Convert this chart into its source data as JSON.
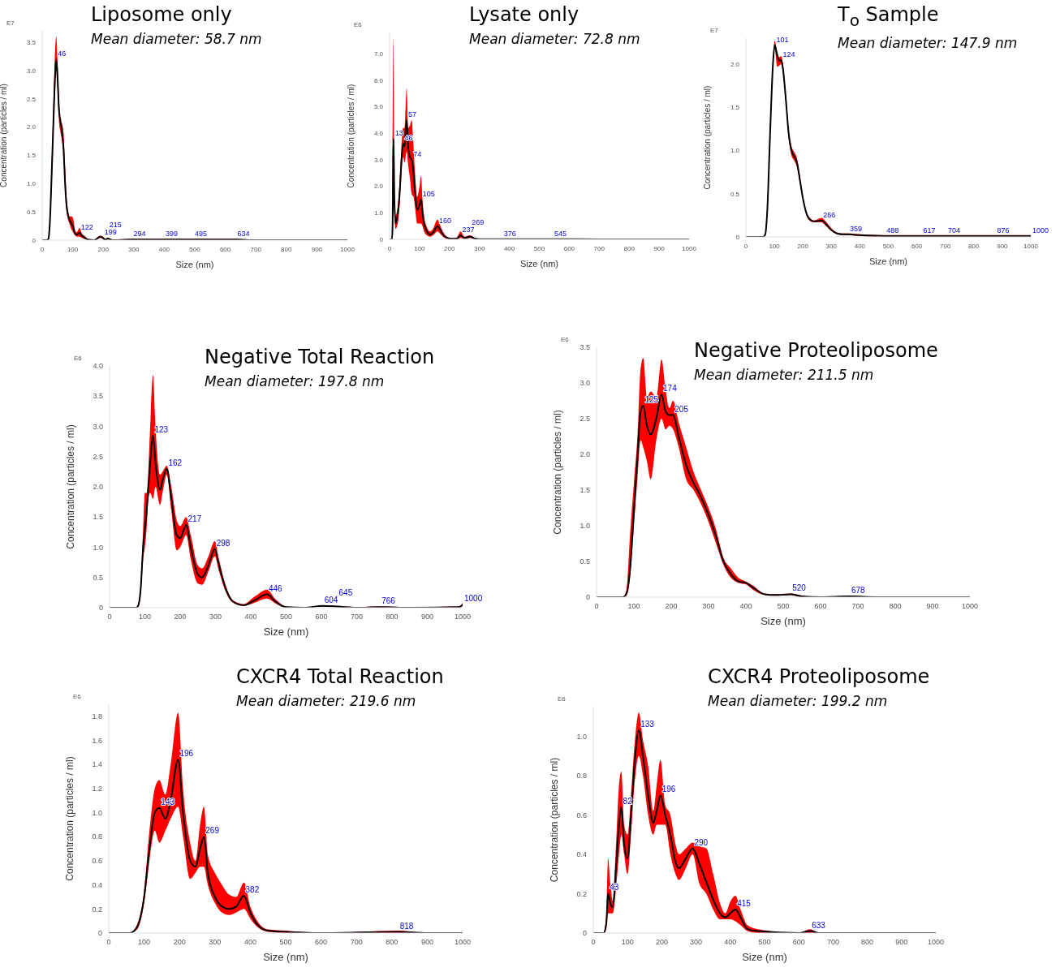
{
  "chart_data": [
    {
      "type": "line",
      "title": "Liposome only",
      "subtitle": "Mean diameter: 58.7 nm",
      "xlabel": "Size (nm)",
      "ylabel": "Concentration (particles / ml)",
      "xlim": [
        0,
        1000
      ],
      "xticks": [
        0,
        100,
        200,
        300,
        400,
        500,
        600,
        700,
        800,
        900,
        1000
      ],
      "ylim": [
        0,
        3.7
      ],
      "yticks": [
        0,
        0.5,
        {
          "value": 1,
          "label": "1.0"
        },
        1.5,
        {
          "value": 2,
          "label": "2.0"
        },
        2.5,
        {
          "value": 3,
          "label": "3.0"
        },
        3.5
      ],
      "series": [
        {
          "color": "#000000",
          "x": [
            0,
            15,
            20,
            25,
            30,
            35,
            40,
            46,
            50,
            55,
            60,
            65,
            70,
            75,
            80,
            90,
            95,
            100,
            110,
            115,
            122,
            130,
            140,
            150,
            170,
            190,
            199,
            207,
            215,
            230,
            294,
            399,
            495,
            634,
            700,
            1000
          ],
          "values": [
            0,
            0,
            0.02,
            0.3,
            1.0,
            1.8,
            2.6,
            3.2,
            2.9,
            2.3,
            2.1,
            1.9,
            1.6,
            1.0,
            0.6,
            0.35,
            0.3,
            0.25,
            0.1,
            0.1,
            0.13,
            0.08,
            0.04,
            0.01,
            0,
            0.06,
            0.04,
            0.01,
            0.03,
            0,
            0.01,
            0.01,
            0.01,
            0.01,
            0,
            0
          ],
          "lower": [
            0,
            0,
            0.01,
            0.2,
            0.8,
            1.6,
            2.3,
            3.0,
            2.7,
            2.1,
            1.9,
            1.75,
            1.5,
            0.9,
            0.5,
            0.28,
            0.2,
            0.15,
            0.07,
            0.06,
            0.06,
            0.04,
            0.02,
            0,
            0,
            0.04,
            0.02,
            0,
            0.01,
            0,
            0,
            0,
            0,
            0,
            0,
            0
          ],
          "upper": [
            0,
            0,
            0.04,
            0.4,
            1.2,
            2.1,
            3.0,
            3.6,
            3.2,
            2.5,
            2.1,
            2.05,
            1.9,
            1.3,
            0.75,
            0.42,
            0.42,
            0.4,
            0.14,
            0.15,
            0.22,
            0.12,
            0.07,
            0.02,
            0.01,
            0.08,
            0.06,
            0.02,
            0.04,
            0.01,
            0.02,
            0.02,
            0.02,
            0.02,
            0,
            0
          ]
        }
      ],
      "annotations": [
        "E7",
        {
          "text": "46",
          "x": 46,
          "y": 3.2
        },
        {
          "text": "122",
          "x": 122,
          "y": 0.13
        },
        {
          "text": "199",
          "x": 199,
          "y": 0.04
        },
        {
          "text": "215",
          "x": 215,
          "y": 0.03
        },
        {
          "text": "294",
          "x": 294,
          "y": 0.01
        },
        {
          "text": "399",
          "x": 399,
          "y": 0.01
        },
        {
          "text": "495",
          "x": 495,
          "y": 0.01
        },
        {
          "text": "634",
          "x": 634,
          "y": 0.01
        }
      ]
    },
    {
      "type": "line",
      "title": "Lysate only",
      "subtitle": "Mean diameter: 72.8 nm",
      "xlabel": "Size (nm)",
      "ylabel": "Concentration (particles / ml)",
      "xlim": [
        0,
        1000
      ],
      "xticks": [
        0,
        100,
        200,
        300,
        400,
        500,
        600,
        700,
        800,
        900,
        1000
      ],
      "ylim": [
        0,
        7.8
      ],
      "yticks": [
        0,
        {
          "value": 1,
          "label": "1.0"
        },
        {
          "value": 2,
          "label": "2.0"
        },
        {
          "value": 3,
          "label": "3.0"
        },
        {
          "value": 4,
          "label": "4.0"
        },
        {
          "value": 5,
          "label": "5.0"
        },
        {
          "value": 6,
          "label": "6.0"
        },
        {
          "value": 7,
          "label": "7.0"
        }
      ],
      "series": [
        {
          "color": "#000000",
          "x": [
            0,
            8,
            10,
            13,
            16,
            20,
            25,
            30,
            35,
            40,
            45,
            50,
            57,
            62,
            68,
            74,
            80,
            85,
            92,
            100,
            105,
            110,
            115,
            125,
            135,
            145,
            160,
            170,
            180,
            195,
            210,
            225,
            237,
            250,
            269,
            285,
            300,
            376,
            545,
            700,
            1000
          ],
          "values": [
            0,
            0,
            0.5,
            3.8,
            1.5,
            0.6,
            0.8,
            1.2,
            2.0,
            3.0,
            3.6,
            3.5,
            4.5,
            3.5,
            3.1,
            3.0,
            2.5,
            1.8,
            1.1,
            1.3,
            1.5,
            1.0,
            0.6,
            0.3,
            0.18,
            0.25,
            0.5,
            0.35,
            0.15,
            0.05,
            0.02,
            0.03,
            0.15,
            0.05,
            0.1,
            0.03,
            0.01,
            0.01,
            0.01,
            0,
            0
          ],
          "lower": [
            0,
            0,
            0.2,
            2.8,
            1.0,
            0.4,
            0.5,
            0.8,
            1.6,
            2.6,
            3.1,
            2.9,
            3.3,
            2.8,
            2.3,
            1.7,
            1.6,
            1.2,
            0.6,
            0.6,
            0.6,
            0.5,
            0.3,
            0.15,
            0.1,
            0.15,
            0.3,
            0.2,
            0.08,
            0.02,
            0,
            0,
            0.05,
            0.02,
            0.05,
            0.01,
            0,
            0,
            0,
            0,
            0
          ],
          "upper": [
            0,
            0,
            2.8,
            7.6,
            2.0,
            0.9,
            1.1,
            1.6,
            2.5,
            3.6,
            4.2,
            4.2,
            5.7,
            4.2,
            4.3,
            4.5,
            3.5,
            2.5,
            1.6,
            2.0,
            2.4,
            1.5,
            0.9,
            0.45,
            0.3,
            0.4,
            0.75,
            0.5,
            0.25,
            0.08,
            0.04,
            0.08,
            0.3,
            0.1,
            0.15,
            0.05,
            0.02,
            0.02,
            0.02,
            0,
            0
          ]
        }
      ],
      "annotations": [
        "E6",
        {
          "text": "13",
          "x": 13,
          "y": 3.8
        },
        {
          "text": "46",
          "x": 45,
          "y": 3.6
        },
        {
          "text": "57",
          "x": 57,
          "y": 4.5
        },
        {
          "text": "74",
          "x": 74,
          "y": 3.0
        },
        {
          "text": "105",
          "x": 105,
          "y": 1.5
        },
        {
          "text": "160",
          "x": 160,
          "y": 0.5
        },
        {
          "text": "237",
          "x": 237,
          "y": 0.15
        },
        {
          "text": "269",
          "x": 269,
          "y": 0.1
        },
        {
          "text": "376",
          "x": 376,
          "y": 0.01
        },
        {
          "text": "545",
          "x": 545,
          "y": 0.01
        }
      ]
    },
    {
      "type": "line",
      "title": "T$_{o}$ Sample",
      "subtitle": "Mean diameter: 147.9 nm",
      "xlabel": "Size (nm)",
      "ylabel": "Concentration (particles / ml)",
      "xlim": [
        0,
        1000
      ],
      "xticks": [
        0,
        100,
        200,
        300,
        400,
        500,
        600,
        700,
        800,
        900,
        1000
      ],
      "ylim": [
        0,
        2.3
      ],
      "yticks": [
        0,
        0.5,
        {
          "value": 1,
          "label": "1.0"
        },
        1.5,
        {
          "value": 2,
          "label": "2.0"
        }
      ],
      "series": [
        {
          "color": "#000000",
          "x": [
            0,
            60,
            68,
            75,
            85,
            95,
            101,
            110,
            117,
            124,
            130,
            140,
            150,
            160,
            170,
            180,
            190,
            200,
            210,
            220,
            240,
            266,
            280,
            300,
            320,
            340,
            359,
            400,
            488,
            617,
            704,
            876,
            1000
          ],
          "values": [
            0,
            0,
            0.03,
            0.3,
            1.2,
            2.0,
            2.22,
            2.1,
            2.04,
            2.05,
            1.95,
            1.6,
            1.2,
            1.0,
            0.93,
            0.85,
            0.65,
            0.45,
            0.3,
            0.22,
            0.18,
            0.19,
            0.15,
            0.08,
            0.04,
            0.03,
            0.03,
            0.02,
            0.01,
            0.01,
            0.01,
            0.01,
            0.01
          ],
          "lower": [
            0,
            0,
            0.02,
            0.25,
            1.15,
            1.97,
            2.18,
            1.97,
            1.98,
            2.0,
            1.9,
            1.55,
            1.15,
            0.94,
            0.88,
            0.8,
            0.61,
            0.42,
            0.28,
            0.2,
            0.17,
            0.17,
            0.13,
            0.07,
            0.03,
            0.02,
            0.02,
            0.01,
            0,
            0,
            0,
            0,
            0
          ],
          "upper": [
            0,
            0,
            0.04,
            0.35,
            1.25,
            2.05,
            2.27,
            2.14,
            2.08,
            2.09,
            2.0,
            1.65,
            1.25,
            1.05,
            0.98,
            0.9,
            0.69,
            0.48,
            0.32,
            0.24,
            0.19,
            0.22,
            0.18,
            0.1,
            0.05,
            0.04,
            0.04,
            0.03,
            0.02,
            0.02,
            0.02,
            0.02,
            0.02
          ]
        }
      ],
      "annotations": [
        "E7",
        {
          "text": "101",
          "x": 101,
          "y": 2.22
        },
        {
          "text": "124",
          "x": 124,
          "y": 2.05
        },
        {
          "text": "266",
          "x": 266,
          "y": 0.19
        },
        {
          "text": "359",
          "x": 359,
          "y": 0.03
        },
        {
          "text": "488",
          "x": 488,
          "y": 0.01
        },
        {
          "text": "617",
          "x": 617,
          "y": 0.01
        },
        {
          "text": "704",
          "x": 704,
          "y": 0.01
        },
        {
          "text": "876",
          "x": 876,
          "y": 0.01
        },
        {
          "text": "1000",
          "x": 1000,
          "y": 0.01
        }
      ]
    },
    {
      "type": "line",
      "title": "Negative Total Reaction",
      "subtitle": "Mean diameter: 197.8 nm",
      "xlabel": "Size (nm)",
      "ylabel": "Concentration (particles / ml)",
      "xlim": [
        0,
        1000
      ],
      "xticks": [
        0,
        100,
        200,
        300,
        400,
        500,
        600,
        700,
        800,
        900,
        1000
      ],
      "ylim": [
        0,
        4
      ],
      "yticks": [
        0,
        0.5,
        {
          "value": 1,
          "label": "1.0"
        },
        1.5,
        {
          "value": 2,
          "label": "2.0"
        },
        2.5,
        {
          "value": 3,
          "label": "3.0"
        },
        3.5,
        {
          "value": 4,
          "label": "4.0"
        }
      ],
      "series": [
        {
          "color": "#000000",
          "x": [
            0,
            75,
            80,
            88,
            95,
            100,
            105,
            110,
            115,
            123,
            130,
            143,
            150,
            162,
            175,
            190,
            200,
            217,
            230,
            250,
            262,
            280,
            298,
            310,
            330,
            350,
            380,
            410,
            446,
            470,
            500,
            550,
            604,
            645,
            700,
            766,
            850,
            990,
            1000
          ],
          "values": [
            0,
            0,
            0.02,
            0.3,
            1.0,
            1.3,
            1.6,
            2.0,
            2.4,
            2.85,
            2.4,
            1.95,
            2.1,
            2.3,
            1.8,
            1.2,
            1.15,
            1.37,
            1.0,
            0.55,
            0.5,
            0.7,
            0.97,
            0.7,
            0.3,
            0.1,
            0.04,
            0.12,
            0.22,
            0.1,
            0.01,
            0,
            0.03,
            0.02,
            0,
            0.01,
            0,
            0.01,
            0.05
          ],
          "lower": [
            0,
            0,
            0,
            0.2,
            0.8,
            1.0,
            1.3,
            1.8,
            1.9,
            1.8,
            2.0,
            1.7,
            1.9,
            2.2,
            1.6,
            0.95,
            1.0,
            1.2,
            0.8,
            0.4,
            0.38,
            0.6,
            0.85,
            0.6,
            0.25,
            0.08,
            0.03,
            0.08,
            0.15,
            0.07,
            0,
            0,
            0.02,
            0.01,
            0,
            0,
            0,
            0,
            0.03
          ],
          "upper": [
            0,
            0,
            0.05,
            0.35,
            1.3,
            1.9,
            1.9,
            2.3,
            3.0,
            3.85,
            3.0,
            2.2,
            2.25,
            2.35,
            2.0,
            1.45,
            1.35,
            1.5,
            1.2,
            0.7,
            0.65,
            0.85,
            1.1,
            0.8,
            0.35,
            0.12,
            0.06,
            0.18,
            0.3,
            0.14,
            0.02,
            0,
            0.04,
            0.03,
            0.01,
            0.02,
            0.01,
            0.02,
            0.08
          ]
        }
      ],
      "annotations": [
        "E6",
        {
          "text": "123",
          "x": 123,
          "y": 2.85
        },
        {
          "text": "162",
          "x": 162,
          "y": 2.3
        },
        {
          "text": "217",
          "x": 217,
          "y": 1.37
        },
        {
          "text": "298",
          "x": 298,
          "y": 0.97
        },
        {
          "text": "446",
          "x": 446,
          "y": 0.22
        },
        {
          "text": "604",
          "x": 604,
          "y": 0.03
        },
        {
          "text": "645",
          "x": 645,
          "y": 0.02
        },
        {
          "text": "766",
          "x": 766,
          "y": 0.01
        },
        {
          "text": "1000",
          "x": 1000,
          "y": 0.05
        }
      ]
    },
    {
      "type": "line",
      "title": "Negative Proteoliposome",
      "subtitle": "Mean diameter: 211.5 nm",
      "xlabel": "Size (nm)",
      "ylabel": "Concentration (particles / ml)",
      "xlim": [
        0,
        1000
      ],
      "xticks": [
        0,
        100,
        200,
        300,
        400,
        500,
        600,
        700,
        800,
        900,
        1000
      ],
      "ylim": [
        0,
        3.5
      ],
      "yticks": [
        0,
        0.5,
        {
          "value": 1,
          "label": "1.0"
        },
        1.5,
        {
          "value": 2,
          "label": "2.0"
        },
        2.5,
        {
          "value": 3,
          "label": "3.0"
        },
        3.5
      ],
      "series": [
        {
          "color": "#000000",
          "x": [
            0,
            70,
            80,
            90,
            100,
            110,
            118,
            125,
            135,
            145,
            160,
            174,
            185,
            195,
            205,
            220,
            240,
            260,
            280,
            300,
            320,
            340,
            360,
            380,
            400,
            420,
            450,
            480,
            520,
            550,
            600,
            678,
            750,
            1000
          ],
          "values": [
            0,
            0,
            0.05,
            0.4,
            1.2,
            2.0,
            2.6,
            2.68,
            2.4,
            2.28,
            2.5,
            2.84,
            2.6,
            2.55,
            2.55,
            2.25,
            1.85,
            1.6,
            1.4,
            1.15,
            0.85,
            0.5,
            0.32,
            0.22,
            0.2,
            0.13,
            0.04,
            0.03,
            0.04,
            0.01,
            0,
            0.01,
            0,
            0
          ],
          "lower": [
            0,
            0,
            0.02,
            0.3,
            1.0,
            1.7,
            2.2,
            2.1,
            1.9,
            1.65,
            2.2,
            2.5,
            2.35,
            2.4,
            2.35,
            2.1,
            1.65,
            1.5,
            1.3,
            1.05,
            0.75,
            0.45,
            0.27,
            0.2,
            0.18,
            0.1,
            0.03,
            0.02,
            0.03,
            0,
            0,
            0,
            0,
            0
          ],
          "upper": [
            0,
            0,
            0.1,
            0.9,
            1.6,
            2.3,
            3.2,
            3.35,
            2.8,
            2.88,
            2.8,
            3.33,
            2.9,
            2.65,
            2.75,
            2.45,
            2.1,
            1.75,
            1.5,
            1.25,
            0.95,
            0.55,
            0.4,
            0.27,
            0.22,
            0.16,
            0.05,
            0.04,
            0.05,
            0.02,
            0,
            0.02,
            0,
            0
          ]
        }
      ],
      "annotations": [
        "E6",
        {
          "text": "125",
          "x": 125,
          "y": 2.68
        },
        {
          "text": "174",
          "x": 174,
          "y": 2.84
        },
        {
          "text": "205",
          "x": 205,
          "y": 2.55
        },
        {
          "text": "520",
          "x": 520,
          "y": 0.04
        },
        {
          "text": "678",
          "x": 678,
          "y": 0.01
        }
      ]
    },
    {
      "type": "line",
      "title": "CXCR4 Total Reaction",
      "subtitle": "Mean diameter: 219.6 nm",
      "xlabel": "Size (nm)",
      "ylabel": "Concentration (particles / ml)",
      "xlim": [
        0,
        1000
      ],
      "xticks": [
        0,
        100,
        200,
        300,
        400,
        500,
        600,
        700,
        800,
        900,
        1000
      ],
      "ylim": [
        0,
        1.9
      ],
      "yticks": [
        0,
        0.2,
        0.4,
        0.6,
        0.8,
        {
          "value": 1,
          "label": "1.0"
        },
        1.2,
        1.4,
        1.6,
        1.8
      ],
      "series": [
        {
          "color": "#000000",
          "x": [
            0,
            60,
            80,
            100,
            115,
            130,
            143,
            160,
            175,
            196,
            210,
            230,
            245,
            258,
            269,
            280,
            300,
            320,
            340,
            360,
            382,
            400,
            420,
            450,
            500,
            600,
            818,
            900,
            1000
          ],
          "values": [
            0,
            0,
            0.05,
            0.3,
            0.7,
            1.0,
            1.04,
            0.95,
            1.1,
            1.44,
            1.0,
            0.6,
            0.55,
            0.7,
            0.8,
            0.5,
            0.3,
            0.22,
            0.2,
            0.22,
            0.31,
            0.17,
            0.07,
            0.02,
            0.01,
            0,
            0.01,
            0,
            0
          ],
          "lower": [
            0,
            0,
            0.03,
            0.25,
            0.6,
            0.85,
            0.75,
            0.85,
            0.95,
            1.05,
            0.8,
            0.45,
            0.5,
            0.55,
            0.55,
            0.4,
            0.25,
            0.17,
            0.15,
            0.17,
            0.2,
            0.12,
            0.05,
            0.01,
            0,
            0,
            0,
            0,
            0
          ],
          "upper": [
            0,
            0,
            0.07,
            0.35,
            0.85,
            1.2,
            1.27,
            1.15,
            1.4,
            1.83,
            1.2,
            0.75,
            0.6,
            0.9,
            1.05,
            0.65,
            0.5,
            0.4,
            0.32,
            0.3,
            0.42,
            0.22,
            0.1,
            0.03,
            0.02,
            0,
            0.02,
            0,
            0
          ]
        }
      ],
      "annotations": [
        "E6",
        {
          "text": "143",
          "x": 143,
          "y": 1.04
        },
        {
          "text": "196",
          "x": 196,
          "y": 1.44
        },
        {
          "text": "269",
          "x": 269,
          "y": 0.8
        },
        {
          "text": "382",
          "x": 382,
          "y": 0.31
        },
        {
          "text": "818",
          "x": 818,
          "y": 0.01
        }
      ]
    },
    {
      "type": "line",
      "title": "CXCR4 Proteoliposome",
      "subtitle": "Mean diameter: 199.2 nm",
      "xlabel": "Size (nm)",
      "ylabel": "Concentration (particles / ml)",
      "xlim": [
        0,
        1000
      ],
      "xticks": [
        0,
        100,
        200,
        300,
        400,
        500,
        600,
        700,
        800,
        900,
        1000
      ],
      "ylim": [
        0,
        1.15
      ],
      "yticks": [
        0,
        0.2,
        0.4,
        0.6,
        0.8,
        {
          "value": 1,
          "label": "1.0"
        }
      ],
      "series": [
        {
          "color": "#000000",
          "x": [
            0,
            30,
            38,
            43,
            50,
            57,
            65,
            75,
            82,
            90,
            100,
            110,
            120,
            133,
            145,
            160,
            175,
            185,
            196,
            210,
            225,
            240,
            250,
            270,
            290,
            310,
            330,
            350,
            370,
            385,
            400,
            415,
            430,
            450,
            480,
            600,
            633,
            660,
            1000
          ],
          "values": [
            0,
            0,
            0.05,
            0.2,
            0.15,
            0.13,
            0.3,
            0.55,
            0.64,
            0.45,
            0.38,
            0.6,
            0.85,
            1.03,
            0.9,
            0.7,
            0.56,
            0.62,
            0.7,
            0.6,
            0.5,
            0.36,
            0.33,
            0.38,
            0.43,
            0.35,
            0.26,
            0.17,
            0.1,
            0.08,
            0.1,
            0.12,
            0.08,
            0.02,
            0.01,
            0,
            0.01,
            0,
            0
          ],
          "lower": [
            0,
            0,
            0.02,
            0.1,
            0.1,
            0.1,
            0.2,
            0.4,
            0.5,
            0.4,
            0.3,
            0.5,
            0.75,
            0.9,
            0.8,
            0.6,
            0.5,
            0.55,
            0.55,
            0.55,
            0.4,
            0.3,
            0.27,
            0.33,
            0.4,
            0.25,
            0.2,
            0.12,
            0.07,
            0.07,
            0.07,
            0.06,
            0.04,
            0.01,
            0,
            0,
            0,
            0,
            0
          ],
          "upper": [
            0,
            0,
            0.1,
            0.38,
            0.25,
            0.16,
            0.4,
            0.75,
            0.82,
            0.55,
            0.5,
            0.7,
            0.95,
            1.12,
            0.98,
            0.85,
            0.62,
            0.75,
            0.88,
            0.65,
            0.6,
            0.45,
            0.4,
            0.43,
            0.46,
            0.44,
            0.43,
            0.3,
            0.15,
            0.1,
            0.16,
            0.19,
            0.12,
            0.04,
            0.02,
            0,
            0.02,
            0,
            0
          ]
        }
      ],
      "annotations": [
        "E6",
        {
          "text": "43",
          "x": 43,
          "y": 0.2
        },
        {
          "text": "82",
          "x": 82,
          "y": 0.64
        },
        {
          "text": "133",
          "x": 133,
          "y": 1.03
        },
        {
          "text": "196",
          "x": 196,
          "y": 0.7
        },
        {
          "text": "290",
          "x": 290,
          "y": 0.43
        },
        {
          "text": "415",
          "x": 415,
          "y": 0.12
        },
        {
          "text": "633",
          "x": 633,
          "y": 0.01
        }
      ]
    }
  ]
}
